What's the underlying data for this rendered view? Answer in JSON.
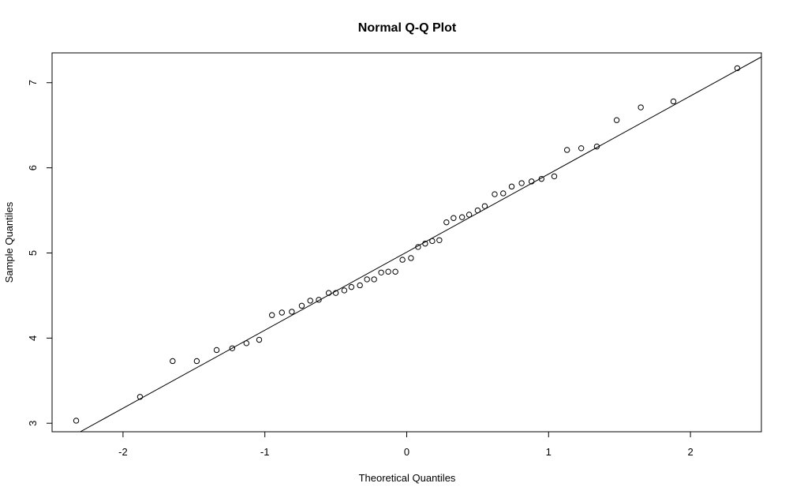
{
  "chart_data": {
    "type": "scatter",
    "title": "Normal Q-Q Plot",
    "xlabel": "Theoretical Quantiles",
    "ylabel": "Sample Quantiles",
    "xlim": [
      -2.5,
      2.5
    ],
    "ylim": [
      2.9,
      7.35
    ],
    "x_ticks": [
      -2,
      -1,
      0,
      1,
      2
    ],
    "x_tick_labels": [
      "-2",
      "-1",
      "0",
      "1",
      "2"
    ],
    "y_ticks": [
      3,
      4,
      5,
      6,
      7
    ],
    "y_tick_labels": [
      "3",
      "4",
      "5",
      "6",
      "7"
    ],
    "grid": false,
    "marker": "open-circle",
    "reference_line": {
      "slope": 0.917,
      "intercept": 5.01
    },
    "series": [
      {
        "x": [
          -2.33,
          -1.88,
          -1.65,
          -1.48,
          -1.34,
          -1.23,
          -1.13,
          -1.04,
          -0.95,
          -0.88,
          -0.81,
          -0.74,
          -0.68,
          -0.62,
          -0.55,
          -0.5,
          -0.44,
          -0.39,
          -0.33,
          -0.28,
          -0.23,
          -0.18,
          -0.13,
          -0.08,
          -0.03,
          0.03,
          0.08,
          0.13,
          0.18,
          0.23,
          0.28,
          0.33,
          0.39,
          0.44,
          0.5,
          0.55,
          0.62,
          0.68,
          0.74,
          0.81,
          0.88,
          0.95,
          1.04,
          1.13,
          1.23,
          1.34,
          1.48,
          1.65,
          1.88,
          2.33
        ],
        "y": [
          3.03,
          3.31,
          3.73,
          3.73,
          3.86,
          3.88,
          3.94,
          3.98,
          4.27,
          4.3,
          4.31,
          4.38,
          4.44,
          4.45,
          4.53,
          4.53,
          4.56,
          4.6,
          4.62,
          4.69,
          4.69,
          4.77,
          4.78,
          4.78,
          4.92,
          4.94,
          5.07,
          5.11,
          5.14,
          5.15,
          5.36,
          5.41,
          5.42,
          5.45,
          5.5,
          5.55,
          5.69,
          5.7,
          5.78,
          5.82,
          5.84,
          5.87,
          5.9,
          6.21,
          6.23,
          6.25,
          6.56,
          6.71,
          6.78,
          7.17
        ]
      }
    ]
  }
}
